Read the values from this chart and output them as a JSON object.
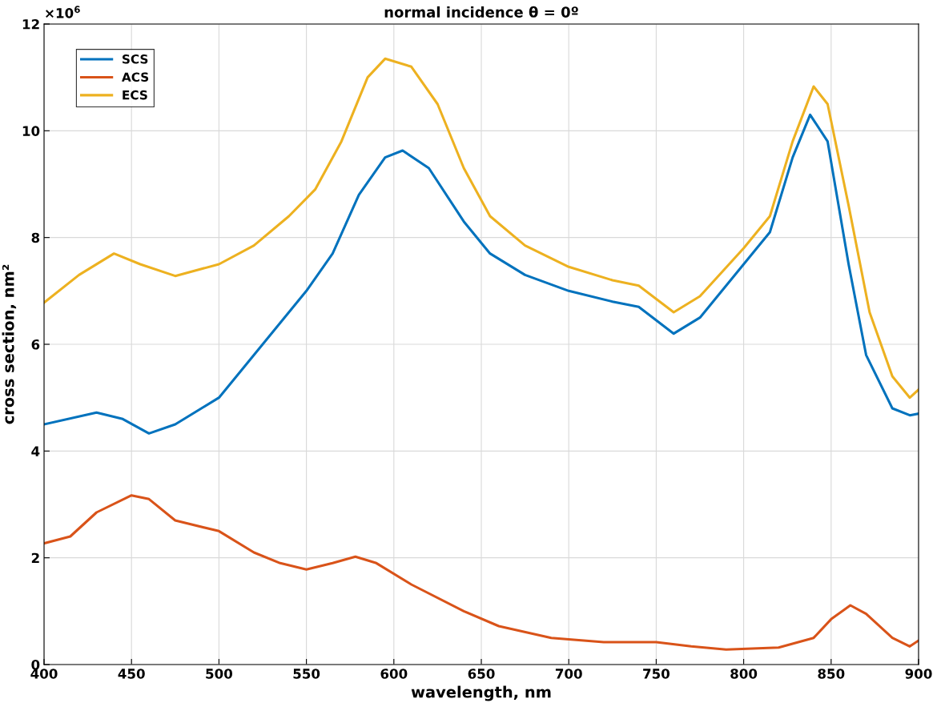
{
  "chart_data": {
    "type": "line",
    "title": "normal incidence θ = 0º",
    "xlabel": "wavelength, nm",
    "ylabel": "cross section, nm²",
    "annotations": [
      "×10$^{6}$"
    ],
    "xlim": [
      400,
      900
    ],
    "xticks": [
      400,
      450,
      500,
      550,
      600,
      650,
      700,
      750,
      800,
      850,
      900
    ],
    "ylim": [
      0,
      12
    ],
    "yticks": [
      0,
      2,
      4,
      6,
      8,
      10,
      12
    ],
    "grid": true,
    "legend": "top left",
    "line_style": "solid",
    "marker": "none",
    "series": [
      {
        "name": "SCS",
        "color": "#0072bd",
        "x": [
          400,
          430,
          445,
          460,
          475,
          500,
          525,
          550,
          565,
          580,
          595,
          605,
          620,
          640,
          655,
          675,
          700,
          725,
          740,
          760,
          775,
          800,
          815,
          828,
          838,
          848,
          860,
          870,
          885,
          895,
          900
        ],
        "values": [
          4.5,
          4.72,
          4.6,
          4.33,
          4.5,
          5.0,
          6.0,
          7.0,
          7.7,
          8.8,
          9.5,
          9.63,
          9.3,
          8.3,
          7.7,
          7.3,
          7.0,
          6.8,
          6.7,
          6.2,
          6.5,
          7.5,
          8.1,
          9.5,
          10.3,
          9.8,
          7.5,
          5.8,
          4.8,
          4.67,
          4.7
        ]
      },
      {
        "name": "ACS",
        "color": "#d95319",
        "x": [
          400,
          415,
          430,
          450,
          460,
          475,
          500,
          520,
          535,
          550,
          565,
          578,
          590,
          610,
          640,
          660,
          690,
          720,
          750,
          770,
          790,
          820,
          840,
          850,
          861,
          870,
          885,
          895,
          900
        ],
        "values": [
          2.27,
          2.4,
          2.85,
          3.17,
          3.1,
          2.7,
          2.5,
          2.1,
          1.9,
          1.78,
          1.9,
          2.02,
          1.9,
          1.5,
          1.0,
          0.72,
          0.5,
          0.42,
          0.42,
          0.34,
          0.28,
          0.32,
          0.5,
          0.85,
          1.11,
          0.95,
          0.5,
          0.34,
          0.45
        ]
      },
      {
        "name": "ECS",
        "color": "#edb120",
        "x": [
          400,
          420,
          440,
          455,
          475,
          500,
          520,
          540,
          555,
          570,
          585,
          595,
          610,
          625,
          640,
          655,
          675,
          700,
          725,
          740,
          760,
          775,
          800,
          815,
          828,
          840,
          848,
          860,
          872,
          885,
          895,
          900
        ],
        "values": [
          6.78,
          7.3,
          7.7,
          7.5,
          7.28,
          7.5,
          7.85,
          8.4,
          8.9,
          9.8,
          11.0,
          11.35,
          11.2,
          10.5,
          9.3,
          8.4,
          7.85,
          7.45,
          7.2,
          7.1,
          6.6,
          6.9,
          7.8,
          8.4,
          9.8,
          10.83,
          10.5,
          8.6,
          6.6,
          5.4,
          5.0,
          5.15
        ]
      }
    ]
  }
}
